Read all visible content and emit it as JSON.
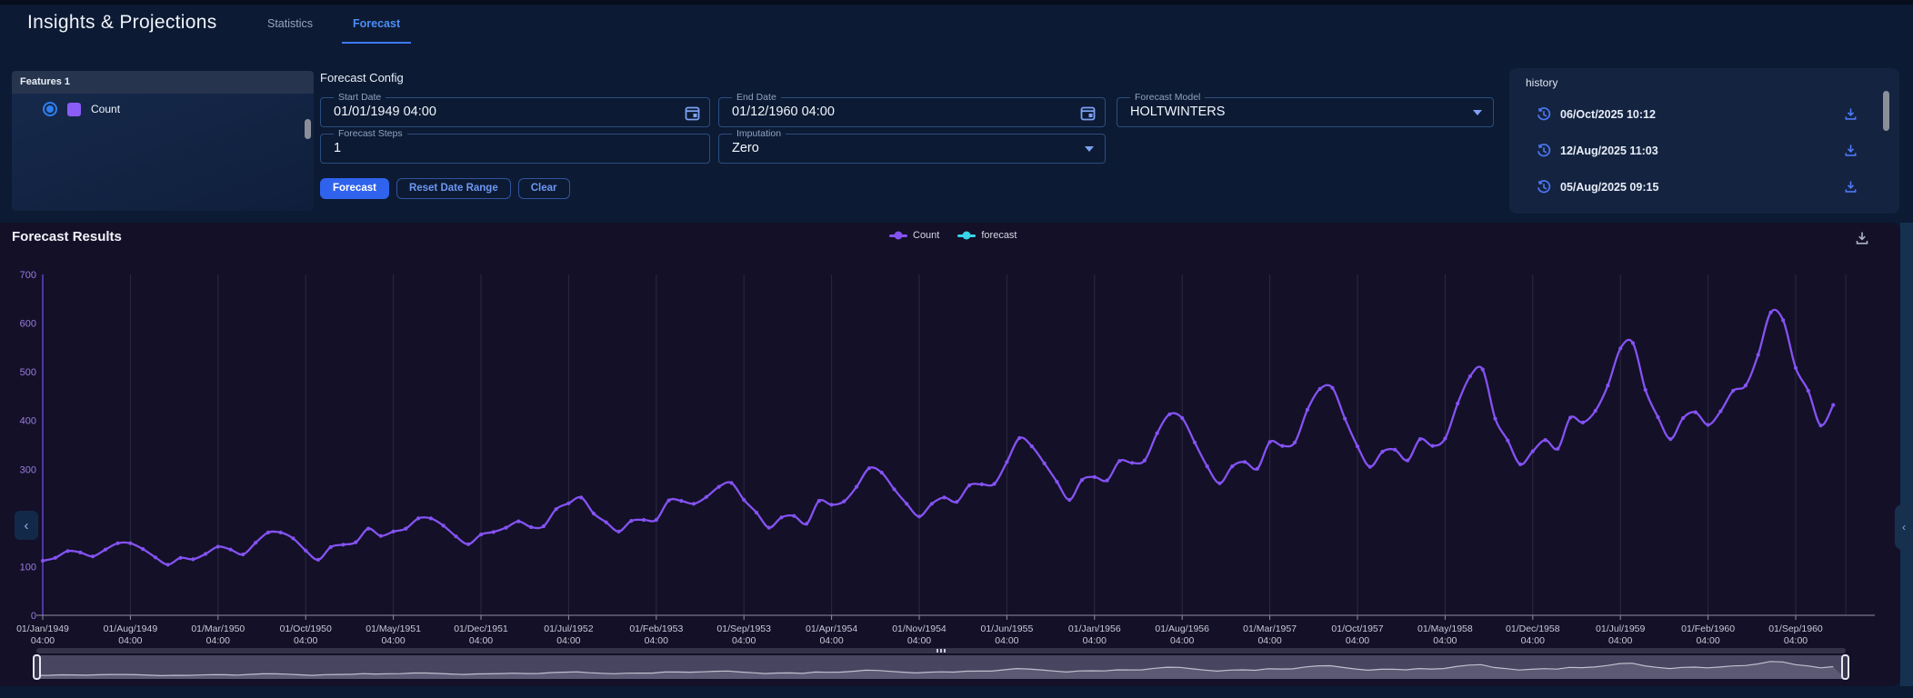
{
  "header": {
    "title": "Insights & Projections",
    "tabs": [
      {
        "label": "Statistics",
        "active": false
      },
      {
        "label": "Forecast",
        "active": true
      }
    ],
    "accent_color": "#3d7bfd"
  },
  "features_panel": {
    "title": "Features 1",
    "items": [
      {
        "label": "Count",
        "selected": true,
        "swatch_color": "#8b5cf6"
      }
    ]
  },
  "forecast_config": {
    "title": "Forecast Config",
    "fields": {
      "start_date": {
        "label": "Start Date",
        "value": "01/01/1949 04:00"
      },
      "end_date": {
        "label": "End Date",
        "value": "01/12/1960 04:00"
      },
      "forecast_model": {
        "label": "Forecast Model",
        "value": "HOLTWINTERS"
      },
      "forecast_steps": {
        "label": "Forecast Steps",
        "value": "1"
      },
      "imputation": {
        "label": "Imputation",
        "value": "Zero"
      }
    },
    "buttons": {
      "forecast": "Forecast",
      "reset": "Reset Date Range",
      "clear": "Clear"
    }
  },
  "history_panel": {
    "title": "history",
    "items": [
      {
        "timestamp": "06/Oct/2025 10:12"
      },
      {
        "timestamp": "12/Aug/2025 11:03"
      },
      {
        "timestamp": "05/Aug/2025 09:15"
      }
    ]
  },
  "results": {
    "title": "Forecast Results"
  },
  "chart_data": {
    "type": "line",
    "title": "Forecast Results",
    "legend_position": "top-center",
    "grid": "vertical-only",
    "ylim": [
      0,
      700
    ],
    "y_ticks": [
      0,
      100,
      200,
      300,
      400,
      500,
      600,
      700
    ],
    "x_tick_time_label": "04:00",
    "x_tick_interval_months": 7,
    "x_tick_labels": [
      "01/Jan/1949",
      "01/Aug/1949",
      "01/Mar/1950",
      "01/Oct/1950",
      "01/May/1951",
      "01/Dec/1951",
      "01/Jul/1952",
      "01/Feb/1953",
      "01/Sep/1953",
      "01/Apr/1954",
      "01/Nov/1954",
      "01/Jun/1955",
      "01/Jan/1956",
      "01/Aug/1956",
      "01/Mar/1957",
      "01/Oct/1957",
      "01/May/1958",
      "01/Dec/1958",
      "01/Jul/1959",
      "01/Feb/1960",
      "01/Sep/1960"
    ],
    "x_range": [
      "01/Jan/1949 04:00",
      "01/Dec/1960 04:00"
    ],
    "series": [
      {
        "name": "Count",
        "color": "#8552f2",
        "values": [
          112,
          118,
          132,
          129,
          121,
          135,
          148,
          148,
          136,
          119,
          104,
          118,
          115,
          126,
          141,
          135,
          125,
          149,
          170,
          170,
          158,
          133,
          114,
          140,
          145,
          150,
          178,
          163,
          172,
          178,
          199,
          199,
          184,
          162,
          146,
          166,
          171,
          180,
          193,
          181,
          183,
          218,
          230,
          242,
          209,
          191,
          172,
          194,
          196,
          196,
          236,
          235,
          229,
          243,
          264,
          272,
          237,
          211,
          180,
          201,
          204,
          188,
          235,
          227,
          234,
          264,
          302,
          293,
          259,
          229,
          203,
          229,
          242,
          233,
          267,
          269,
          270,
          315,
          364,
          347,
          312,
          274,
          237,
          278,
          284,
          277,
          317,
          313,
          318,
          374,
          413,
          405,
          355,
          306,
          271,
          306,
          315,
          301,
          356,
          348,
          355,
          422,
          465,
          467,
          404,
          347,
          305,
          336,
          340,
          318,
          362,
          348,
          363,
          435,
          491,
          505,
          404,
          359,
          310,
          337,
          360,
          342,
          406,
          396,
          420,
          472,
          548,
          559,
          463,
          407,
          362,
          405,
          417,
          391,
          419,
          461,
          472,
          535,
          622,
          606,
          508,
          461,
          390,
          432
        ]
      },
      {
        "name": "forecast",
        "color": "#38d4ea",
        "values": []
      }
    ]
  }
}
